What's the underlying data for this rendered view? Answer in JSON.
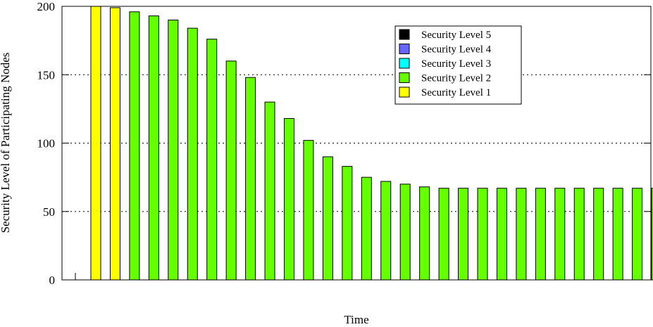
{
  "chart_data": {
    "type": "bar",
    "title": "",
    "xlabel": "Time",
    "ylabel": "Security Level of Participating Nodes",
    "ylim": [
      0,
      200
    ],
    "yticks": [
      0,
      50,
      100,
      150,
      200
    ],
    "grid": "horizontal-dotted",
    "legend_position": "top-right",
    "series": [
      {
        "name": "Security Level 5",
        "color": "#000000"
      },
      {
        "name": "Security Level 4",
        "color": "#6666ff"
      },
      {
        "name": "Security Level 3",
        "color": "#00ffff"
      },
      {
        "name": "Security Level 2",
        "color": "#66ff00"
      },
      {
        "name": "Security Level 1",
        "color": "#ffff00"
      }
    ],
    "bars": [
      {
        "value": 200,
        "level": "Security Level 1"
      },
      {
        "value": 199,
        "level": "Security Level 1"
      },
      {
        "value": 196,
        "level": "Security Level 2"
      },
      {
        "value": 193,
        "level": "Security Level 2"
      },
      {
        "value": 190,
        "level": "Security Level 2"
      },
      {
        "value": 184,
        "level": "Security Level 2"
      },
      {
        "value": 176,
        "level": "Security Level 2"
      },
      {
        "value": 160,
        "level": "Security Level 2"
      },
      {
        "value": 148,
        "level": "Security Level 2"
      },
      {
        "value": 130,
        "level": "Security Level 2"
      },
      {
        "value": 118,
        "level": "Security Level 2"
      },
      {
        "value": 102,
        "level": "Security Level 2"
      },
      {
        "value": 90,
        "level": "Security Level 2"
      },
      {
        "value": 83,
        "level": "Security Level 2"
      },
      {
        "value": 75,
        "level": "Security Level 2"
      },
      {
        "value": 72,
        "level": "Security Level 2"
      },
      {
        "value": 70,
        "level": "Security Level 2"
      },
      {
        "value": 68,
        "level": "Security Level 2"
      },
      {
        "value": 67,
        "level": "Security Level 2"
      },
      {
        "value": 67,
        "level": "Security Level 2"
      },
      {
        "value": 67,
        "level": "Security Level 2"
      },
      {
        "value": 67,
        "level": "Security Level 2"
      },
      {
        "value": 67,
        "level": "Security Level 2"
      },
      {
        "value": 67,
        "level": "Security Level 2"
      },
      {
        "value": 67,
        "level": "Security Level 2"
      },
      {
        "value": 67,
        "level": "Security Level 2"
      },
      {
        "value": 67,
        "level": "Security Level 2"
      },
      {
        "value": 67,
        "level": "Security Level 2"
      },
      {
        "value": 67,
        "level": "Security Level 2"
      },
      {
        "value": 67,
        "level": "Security Level 2"
      }
    ]
  }
}
